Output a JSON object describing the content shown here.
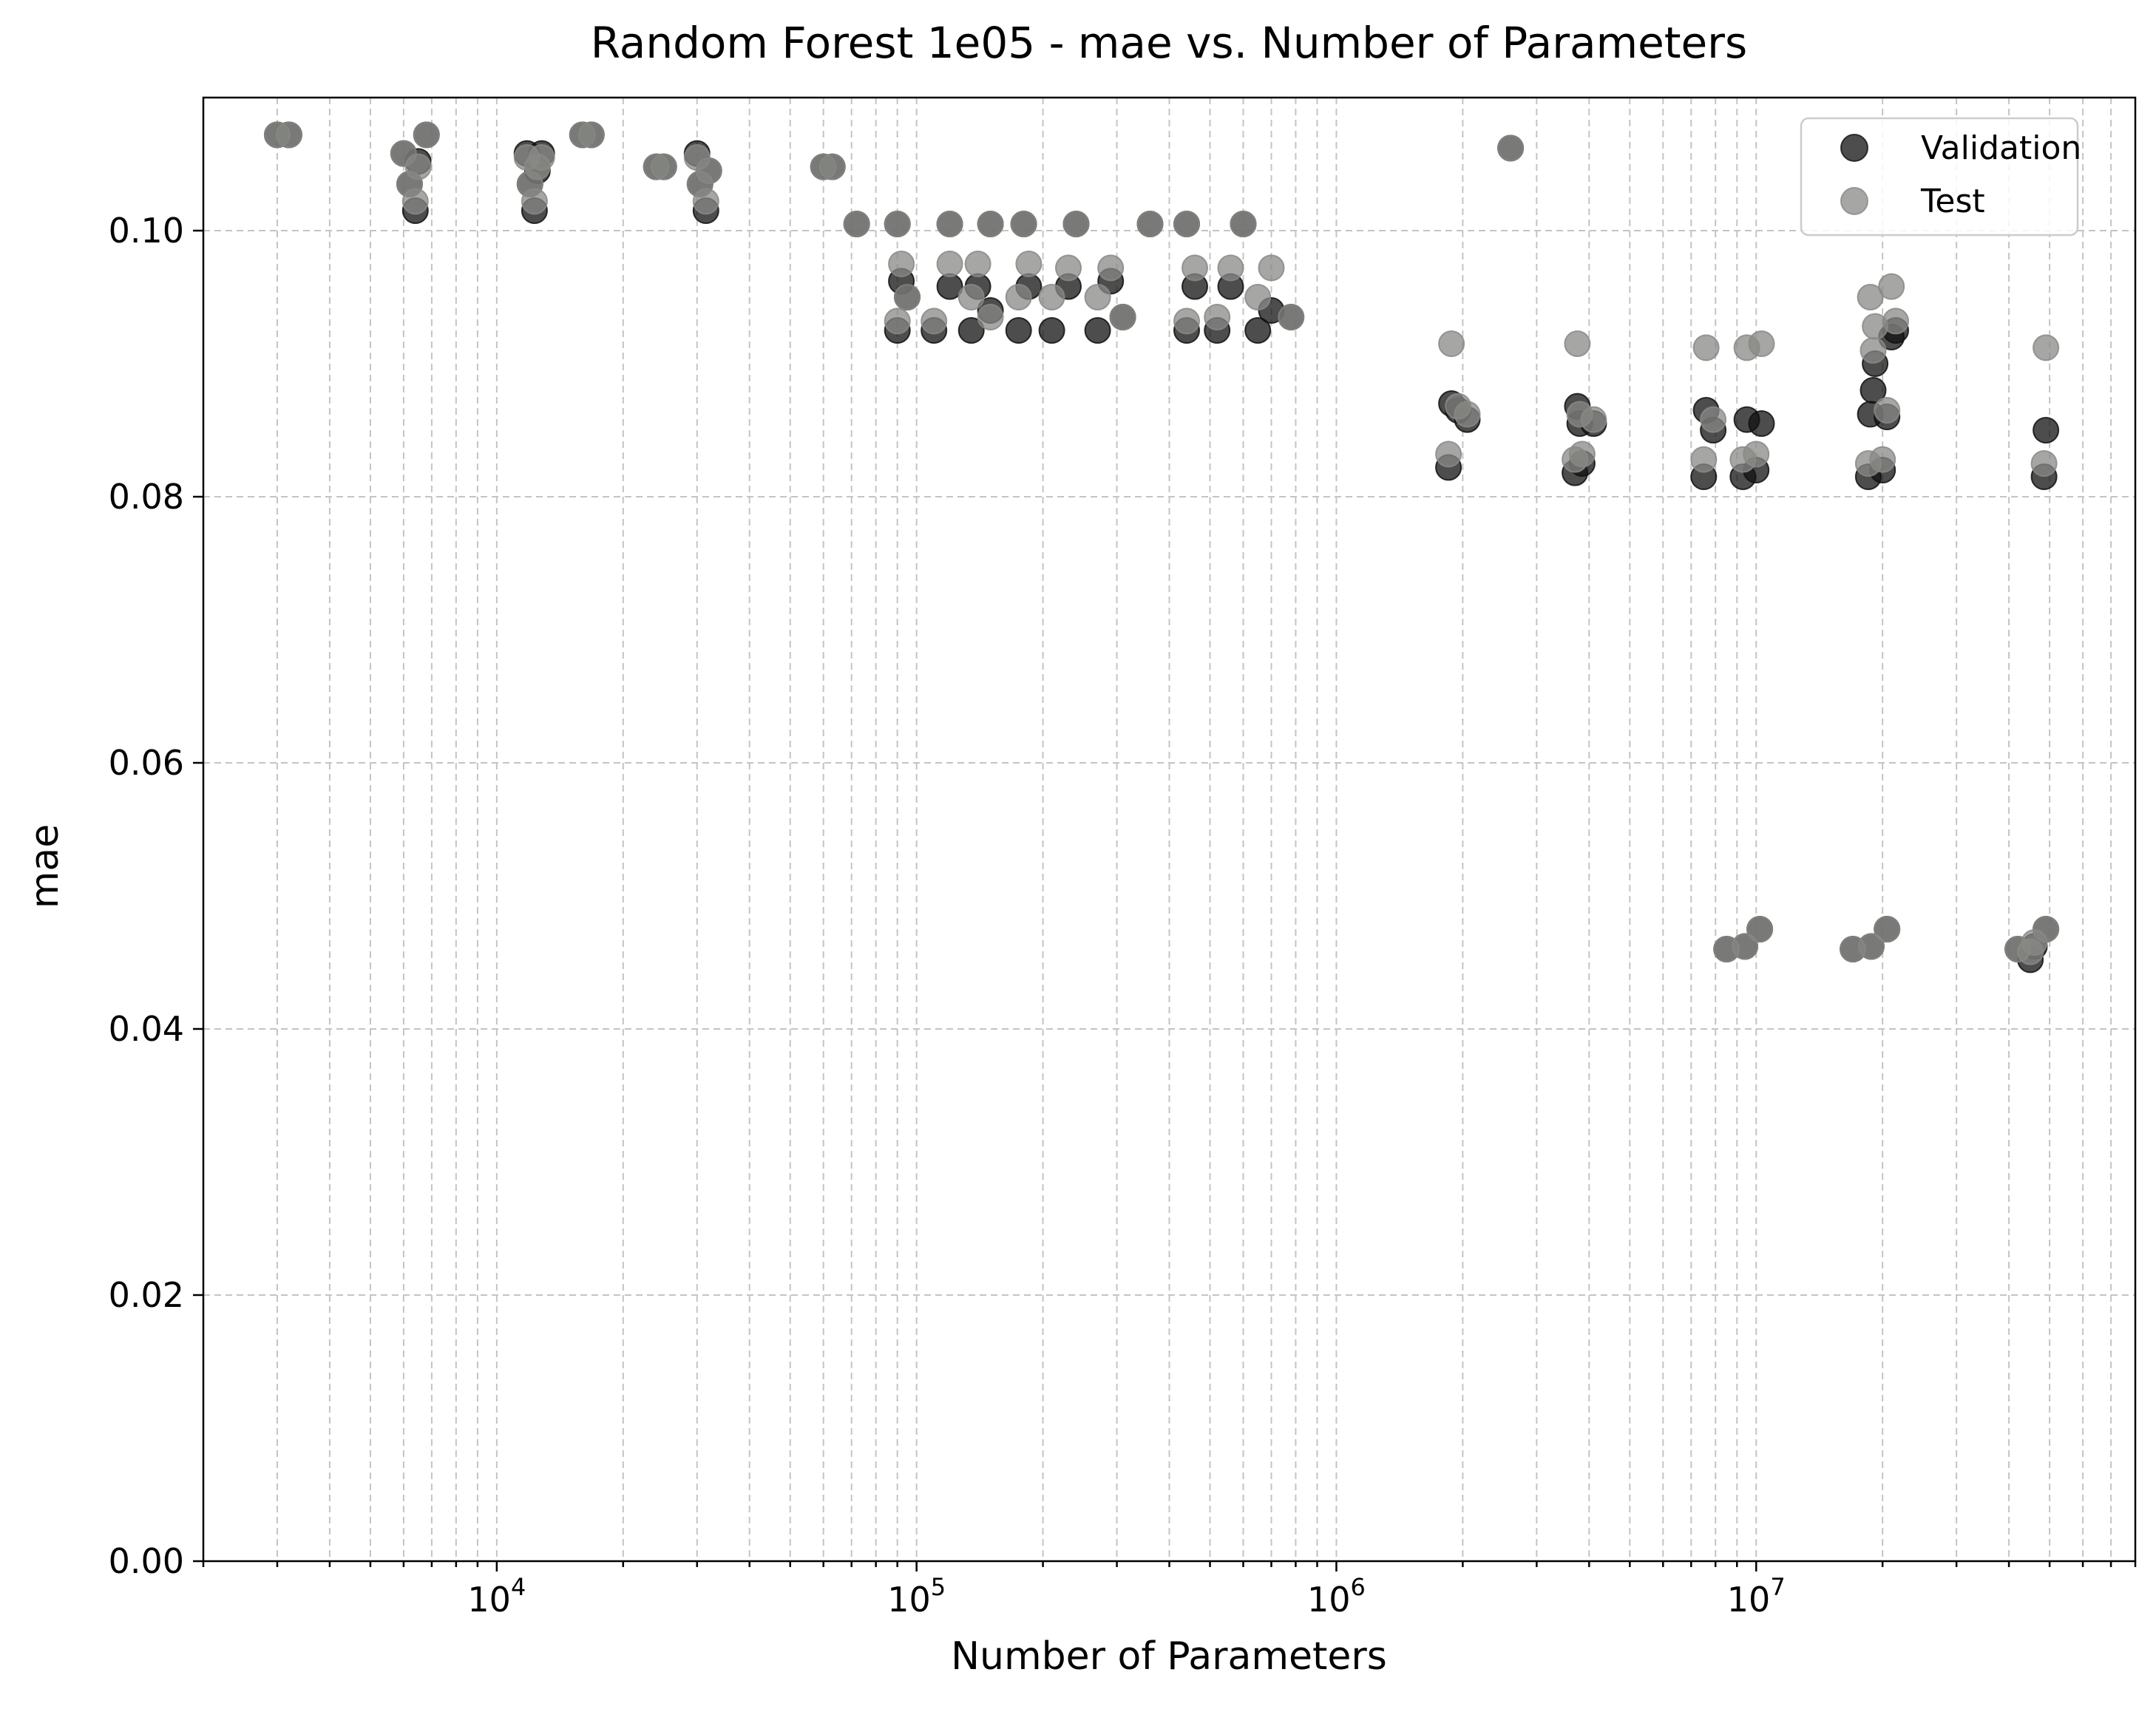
{
  "chart_data": {
    "type": "scatter",
    "title": "Random Forest 1e05 - mae vs. Number of Parameters",
    "xlabel": "Number of Parameters",
    "ylabel": "mae",
    "xscale": "log",
    "xlim": [
      2000,
      80000000
    ],
    "ylim": [
      0,
      0.11
    ],
    "grid": true,
    "legend_position": "top-right",
    "x_major_ticks": [
      {
        "value": 10000,
        "base": "10",
        "exp": "4"
      },
      {
        "value": 100000,
        "base": "10",
        "exp": "5"
      },
      {
        "value": 1000000,
        "base": "10",
        "exp": "6"
      },
      {
        "value": 10000000,
        "base": "10",
        "exp": "7"
      }
    ],
    "y_ticks": [
      {
        "value": 0.0,
        "label": "0.00"
      },
      {
        "value": 0.02,
        "label": "0.02"
      },
      {
        "value": 0.04,
        "label": "0.04"
      },
      {
        "value": 0.06,
        "label": "0.06"
      },
      {
        "value": 0.08,
        "label": "0.08"
      },
      {
        "value": 0.1,
        "label": "0.10"
      }
    ],
    "series": [
      {
        "name": "Validation",
        "color": "#111111",
        "alpha": 0.75,
        "points": [
          [
            3000,
            0.1072
          ],
          [
            3200,
            0.1072
          ],
          [
            6000,
            0.1058
          ],
          [
            6200,
            0.1035
          ],
          [
            6400,
            0.1015
          ],
          [
            6500,
            0.1052
          ],
          [
            6800,
            0.1072
          ],
          [
            11800,
            0.1058
          ],
          [
            12000,
            0.1035
          ],
          [
            12300,
            0.1015
          ],
          [
            12500,
            0.1045
          ],
          [
            12800,
            0.1058
          ],
          [
            16000,
            0.1072
          ],
          [
            16800,
            0.1072
          ],
          [
            24000,
            0.1048
          ],
          [
            25000,
            0.1048
          ],
          [
            30000,
            0.1058
          ],
          [
            30500,
            0.1035
          ],
          [
            31500,
            0.1015
          ],
          [
            32000,
            0.1045
          ],
          [
            60000,
            0.1048
          ],
          [
            63000,
            0.1048
          ],
          [
            72000,
            0.1005
          ],
          [
            90000,
            0.1005
          ],
          [
            120000,
            0.1005
          ],
          [
            150000,
            0.1005
          ],
          [
            180000,
            0.1005
          ],
          [
            240000,
            0.1005
          ],
          [
            360000,
            0.1005
          ],
          [
            440000,
            0.1005
          ],
          [
            600000,
            0.1005
          ],
          [
            90000,
            0.0925
          ],
          [
            92000,
            0.0962
          ],
          [
            95000,
            0.095
          ],
          [
            110000,
            0.0925
          ],
          [
            120000,
            0.0958
          ],
          [
            135000,
            0.0925
          ],
          [
            140000,
            0.0958
          ],
          [
            150000,
            0.094
          ],
          [
            175000,
            0.0925
          ],
          [
            185000,
            0.0958
          ],
          [
            210000,
            0.0925
          ],
          [
            230000,
            0.0958
          ],
          [
            270000,
            0.0925
          ],
          [
            290000,
            0.0962
          ],
          [
            310000,
            0.0935
          ],
          [
            440000,
            0.0925
          ],
          [
            460000,
            0.0958
          ],
          [
            520000,
            0.0925
          ],
          [
            560000,
            0.0958
          ],
          [
            650000,
            0.0925
          ],
          [
            700000,
            0.094
          ],
          [
            780000,
            0.0935
          ],
          [
            1850000,
            0.0822
          ],
          [
            1880000,
            0.087
          ],
          [
            1950000,
            0.0865
          ],
          [
            2050000,
            0.0858
          ],
          [
            2600000,
            0.1062
          ],
          [
            3700000,
            0.0818
          ],
          [
            3750000,
            0.0868
          ],
          [
            3800000,
            0.0855
          ],
          [
            3850000,
            0.0825
          ],
          [
            4100000,
            0.0855
          ],
          [
            7500000,
            0.0815
          ],
          [
            7600000,
            0.0865
          ],
          [
            7900000,
            0.085
          ],
          [
            9300000,
            0.0815
          ],
          [
            9500000,
            0.0858
          ],
          [
            10000000,
            0.082
          ],
          [
            10300000,
            0.0855
          ],
          [
            18500000,
            0.0815
          ],
          [
            18700000,
            0.0862
          ],
          [
            19000000,
            0.088
          ],
          [
            19200000,
            0.09
          ],
          [
            20000000,
            0.082
          ],
          [
            20500000,
            0.086
          ],
          [
            21000000,
            0.092
          ],
          [
            21500000,
            0.0925
          ],
          [
            48500000,
            0.0815
          ],
          [
            49000000,
            0.085
          ],
          [
            8500000,
            0.046
          ],
          [
            9400000,
            0.0462
          ],
          [
            10200000,
            0.0475
          ],
          [
            17000000,
            0.046
          ],
          [
            18800000,
            0.0462
          ],
          [
            20500000,
            0.0475
          ],
          [
            42000000,
            0.046
          ],
          [
            45000000,
            0.0452
          ],
          [
            46000000,
            0.0462
          ],
          [
            49000000,
            0.0475
          ]
        ]
      },
      {
        "name": "Test",
        "color": "#888a86",
        "alpha": 0.75,
        "points": [
          [
            3000,
            0.1072
          ],
          [
            3200,
            0.1072
          ],
          [
            6000,
            0.1058
          ],
          [
            6200,
            0.1035
          ],
          [
            6400,
            0.1022
          ],
          [
            6500,
            0.1048
          ],
          [
            6800,
            0.1072
          ],
          [
            11800,
            0.1055
          ],
          [
            12000,
            0.1035
          ],
          [
            12300,
            0.1022
          ],
          [
            12500,
            0.1048
          ],
          [
            12800,
            0.1055
          ],
          [
            16000,
            0.1072
          ],
          [
            16800,
            0.1072
          ],
          [
            24000,
            0.1048
          ],
          [
            25000,
            0.1048
          ],
          [
            30000,
            0.1055
          ],
          [
            30500,
            0.1035
          ],
          [
            31500,
            0.1022
          ],
          [
            32000,
            0.1045
          ],
          [
            60000,
            0.1048
          ],
          [
            63000,
            0.1048
          ],
          [
            72000,
            0.1005
          ],
          [
            90000,
            0.1005
          ],
          [
            120000,
            0.1005
          ],
          [
            150000,
            0.1005
          ],
          [
            180000,
            0.1005
          ],
          [
            240000,
            0.1005
          ],
          [
            360000,
            0.1005
          ],
          [
            440000,
            0.1005
          ],
          [
            600000,
            0.1005
          ],
          [
            90000,
            0.0932
          ],
          [
            92000,
            0.0975
          ],
          [
            95000,
            0.095
          ],
          [
            110000,
            0.0932
          ],
          [
            120000,
            0.0975
          ],
          [
            135000,
            0.095
          ],
          [
            140000,
            0.0975
          ],
          [
            150000,
            0.0935
          ],
          [
            175000,
            0.095
          ],
          [
            185000,
            0.0975
          ],
          [
            210000,
            0.095
          ],
          [
            230000,
            0.0972
          ],
          [
            270000,
            0.095
          ],
          [
            290000,
            0.0972
          ],
          [
            310000,
            0.0935
          ],
          [
            440000,
            0.0932
          ],
          [
            460000,
            0.0972
          ],
          [
            520000,
            0.0935
          ],
          [
            560000,
            0.0972
          ],
          [
            650000,
            0.095
          ],
          [
            700000,
            0.0972
          ],
          [
            780000,
            0.0935
          ],
          [
            1850000,
            0.0832
          ],
          [
            1880000,
            0.0915
          ],
          [
            1950000,
            0.0868
          ],
          [
            2050000,
            0.0862
          ],
          [
            2600000,
            0.1062
          ],
          [
            3700000,
            0.0828
          ],
          [
            3750000,
            0.0915
          ],
          [
            3800000,
            0.0862
          ],
          [
            3850000,
            0.0832
          ],
          [
            4100000,
            0.0858
          ],
          [
            7500000,
            0.0828
          ],
          [
            7600000,
            0.0912
          ],
          [
            7900000,
            0.0858
          ],
          [
            9300000,
            0.0828
          ],
          [
            9500000,
            0.0912
          ],
          [
            10000000,
            0.0832
          ],
          [
            10300000,
            0.0915
          ],
          [
            18500000,
            0.0825
          ],
          [
            18700000,
            0.095
          ],
          [
            19000000,
            0.091
          ],
          [
            19200000,
            0.0928
          ],
          [
            20000000,
            0.0828
          ],
          [
            20500000,
            0.0865
          ],
          [
            21000000,
            0.0958
          ],
          [
            21500000,
            0.0932
          ],
          [
            48500000,
            0.0825
          ],
          [
            49000000,
            0.0912
          ],
          [
            8500000,
            0.046
          ],
          [
            9400000,
            0.0462
          ],
          [
            10200000,
            0.0475
          ],
          [
            17000000,
            0.046
          ],
          [
            18800000,
            0.0462
          ],
          [
            20500000,
            0.0475
          ],
          [
            42000000,
            0.046
          ],
          [
            45000000,
            0.0458
          ],
          [
            46000000,
            0.0465
          ],
          [
            49000000,
            0.0475
          ]
        ]
      }
    ]
  }
}
